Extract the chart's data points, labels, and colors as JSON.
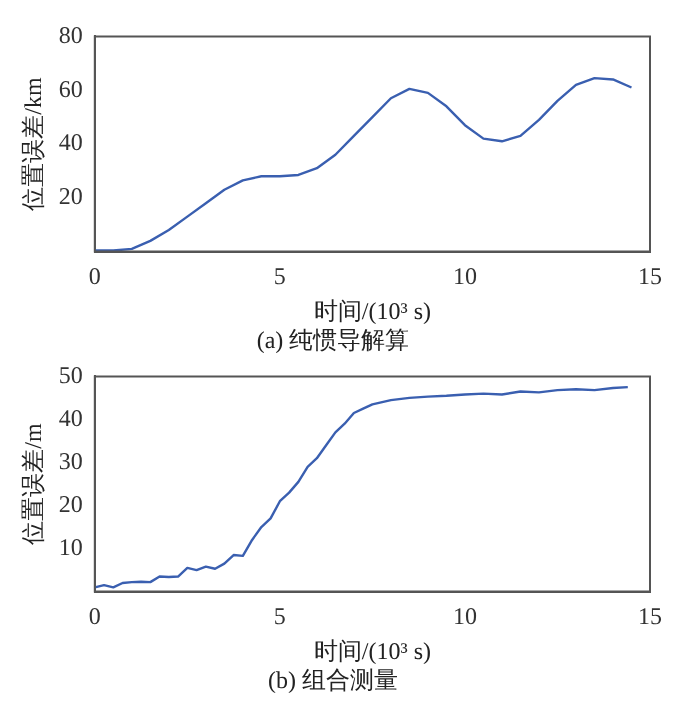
{
  "chart_data": [
    {
      "type": "line",
      "title": "(a) 纯惯导解算",
      "xlabel": "时间/(10³ s)",
      "ylabel": "位置误差/km",
      "xlim": [
        0,
        15
      ],
      "xticks": [
        0,
        5,
        10,
        15
      ],
      "ylim": [
        0,
        80
      ],
      "yticks": [
        20,
        40,
        60,
        80
      ],
      "grid": false,
      "legend": false,
      "marker": "none",
      "line_style": "solid",
      "x": [
        0,
        0.5,
        1,
        1.5,
        2,
        2.5,
        3,
        3.5,
        4,
        4.5,
        5,
        5.5,
        6,
        6.5,
        7,
        7.5,
        8,
        8.5,
        9,
        9.5,
        10,
        10.5,
        11,
        11.5,
        12,
        12.5,
        13,
        13.5,
        14,
        14.5
      ],
      "series": [
        {
          "color": "#3a5fb0",
          "values": [
            0.4,
            0.4,
            1,
            4,
            8,
            13,
            18,
            23,
            26.5,
            28,
            28,
            28.5,
            31,
            36,
            43,
            50,
            57,
            60.5,
            59,
            54,
            47,
            42,
            41,
            43,
            49,
            56,
            62,
            64.5,
            64,
            61
          ]
        }
      ]
    },
    {
      "type": "line",
      "title": "(b) 组合测量",
      "xlabel": "时间/(10³ s)",
      "ylabel": "位置误差/m",
      "xlim": [
        0,
        15
      ],
      "xticks": [
        0,
        5,
        10,
        15
      ],
      "ylim": [
        0,
        50
      ],
      "yticks": [
        10,
        20,
        30,
        40,
        50
      ],
      "grid": false,
      "legend": false,
      "marker": "none",
      "line_style": "solid",
      "x": [
        0,
        0.25,
        0.5,
        0.75,
        1,
        1.25,
        1.5,
        1.75,
        2,
        2.25,
        2.5,
        2.75,
        3,
        3.25,
        3.5,
        3.75,
        4,
        4.25,
        4.5,
        4.75,
        5,
        5.25,
        5.5,
        5.75,
        6,
        6.25,
        6.5,
        6.75,
        7,
        7.25,
        7.5,
        8,
        8.5,
        9,
        9.5,
        10,
        10.5,
        11,
        11.5,
        12,
        12.5,
        13,
        13.5,
        14,
        14.4
      ],
      "series": [
        {
          "color": "#3a5fb0",
          "values": [
            1,
            1.5,
            1,
            2,
            2.2,
            2.3,
            2.2,
            3.5,
            3.4,
            3.5,
            5.5,
            5,
            5.8,
            5.3,
            6.5,
            8.5,
            8.3,
            12,
            15,
            17,
            21,
            23,
            25.5,
            29,
            31,
            34,
            37,
            39,
            41.5,
            42.5,
            43.5,
            44.5,
            45,
            45.3,
            45.5,
            45.8,
            46,
            45.8,
            46.5,
            46.3,
            46.8,
            47,
            46.8,
            47.3,
            47.5
          ]
        }
      ]
    }
  ]
}
